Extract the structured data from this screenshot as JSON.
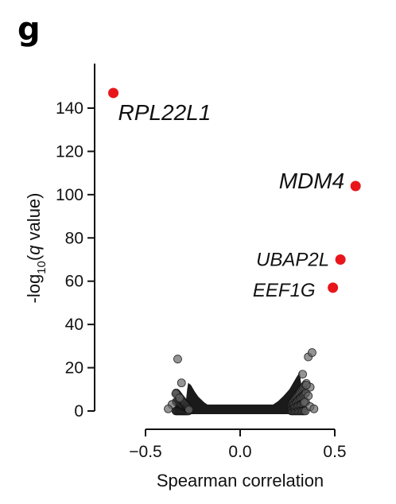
{
  "panel_label": "g",
  "chart_data": {
    "type": "scatter",
    "xlabel": "Spearman correlation",
    "ylabel_parts": {
      "pre": "-log",
      "sub": "10",
      "open": "(",
      "italic": "q",
      "post": " value)"
    },
    "xlim": [
      -0.7,
      0.6
    ],
    "ylim": [
      0,
      150
    ],
    "x_ticks": [
      -0.5,
      0.0,
      0.5
    ],
    "x_tick_labels": [
      "−0.5",
      "0.0",
      "0.5"
    ],
    "y_ticks": [
      0,
      20,
      40,
      60,
      80,
      100,
      120,
      140
    ],
    "y_tick_labels": [
      "0",
      "20",
      "40",
      "60",
      "80",
      "100",
      "120",
      "140"
    ],
    "highlight_color": "#e8161b",
    "background_color": "#1a1a1a",
    "highlighted": [
      {
        "gene": "RPL22L1",
        "x": -0.67,
        "y": 147
      },
      {
        "gene": "MDM4",
        "x": 0.61,
        "y": 104
      },
      {
        "gene": "UBAP2L",
        "x": 0.53,
        "y": 70
      },
      {
        "gene": "EEF1G",
        "x": 0.49,
        "y": 57
      }
    ],
    "background_points": [
      {
        "x": -0.33,
        "y": 24
      },
      {
        "x": -0.34,
        "y": 8
      },
      {
        "x": -0.36,
        "y": 3
      },
      {
        "x": -0.38,
        "y": 1
      },
      {
        "x": -0.31,
        "y": 13
      },
      {
        "x": 0.36,
        "y": 25
      },
      {
        "x": 0.38,
        "y": 27
      },
      {
        "x": 0.37,
        "y": 11
      },
      {
        "x": 0.36,
        "y": 7
      },
      {
        "x": 0.34,
        "y": 4
      },
      {
        "x": 0.37,
        "y": 2
      },
      {
        "x": 0.33,
        "y": 17
      },
      {
        "x": 0.35,
        "y": 12
      },
      {
        "x": -0.32,
        "y": 6
      },
      {
        "x": 0.39,
        "y": 1
      }
    ]
  }
}
